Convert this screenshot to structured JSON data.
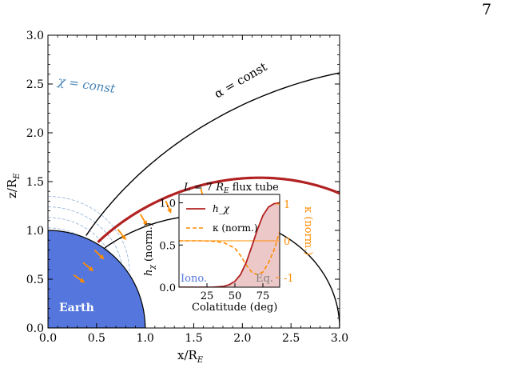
{
  "page_number": "7",
  "labels": {
    "chi_const": "χ = const",
    "alpha_const": "α = const",
    "earth": "Earth",
    "x_axis": "x/R",
    "x_axis_sub": "E",
    "y_axis": "z/R",
    "y_axis_sub": "E"
  },
  "colors": {
    "earth": "#5577dd",
    "red_field_line": "#b22222",
    "black_field_line": "#000000",
    "chi_contour": "#8fb0d8",
    "chi_label": "#4682b4",
    "arrows": "#ff8c00",
    "kappa": "#ff8c00",
    "h_chi": "#b22222"
  },
  "chart_data": [
    {
      "type": "line",
      "title": "",
      "xlabel": "x/R_E",
      "ylabel": "z/R_E",
      "xlim": [
        0,
        3
      ],
      "ylim": [
        0,
        3
      ],
      "xticks": [
        "0.0",
        "0.5",
        "1.0",
        "1.5",
        "2.0",
        "2.5",
        "3.0"
      ],
      "yticks": [
        "0.0",
        "0.5",
        "1.0",
        "1.5",
        "2.0",
        "2.5",
        "3.0"
      ],
      "series": [
        {
          "kind": "dipole field line",
          "L": 3.0,
          "color": "black"
        },
        {
          "kind": "dipole field line",
          "L": 4.0,
          "color": "red"
        },
        {
          "kind": "dipole field line",
          "L": 7.0,
          "color": "black"
        }
      ],
      "chi_contours_C": [
        0.55,
        0.65,
        0.78,
        0.95,
        1.15,
        1.45,
        2.0,
        3.5,
        8.0
      ],
      "arrow_colatitudes_deg": [
        23,
        26,
        29,
        34,
        38,
        42,
        47
      ],
      "earth_radius": 1.0
    },
    {
      "type": "line",
      "title": "L = 7 R_E flux tube",
      "xlabel": "Colatitude (deg)",
      "ylabel": "h_χ (norm.)",
      "y2label": "κ (norm.)",
      "xlim": [
        0,
        90
      ],
      "ylim": [
        0,
        1.1
      ],
      "xticks": [
        "25",
        "50",
        "75"
      ],
      "yticks": [
        "0.0",
        "0.5",
        "1.0"
      ],
      "y2ticks": [
        "-1",
        "0",
        "1"
      ],
      "legend": "upper-left",
      "region_labels": [
        "Iono.",
        "Eq."
      ],
      "series": [
        {
          "name": "h_χ",
          "style": "solid",
          "color": "#b22222",
          "x": [
            0,
            10,
            20,
            30,
            35,
            40,
            45,
            50,
            55,
            60,
            65,
            70,
            75,
            80,
            85,
            90
          ],
          "y": [
            0,
            0,
            0,
            0,
            0.005,
            0.01,
            0.03,
            0.07,
            0.15,
            0.29,
            0.48,
            0.68,
            0.85,
            0.95,
            0.99,
            1.0
          ]
        },
        {
          "name": "κ (norm.)",
          "style": "dashed",
          "color": "#ff8c00",
          "x": [
            0,
            10,
            20,
            30,
            40,
            50,
            55,
            60,
            65,
            70,
            75,
            80,
            85,
            90
          ],
          "y": [
            0,
            0,
            0,
            -0.01,
            -0.05,
            -0.2,
            -0.4,
            -0.65,
            -0.85,
            -0.92,
            -0.85,
            -0.6,
            -0.25,
            0.25
          ]
        }
      ],
      "kappa_zero_line": true
    }
  ]
}
